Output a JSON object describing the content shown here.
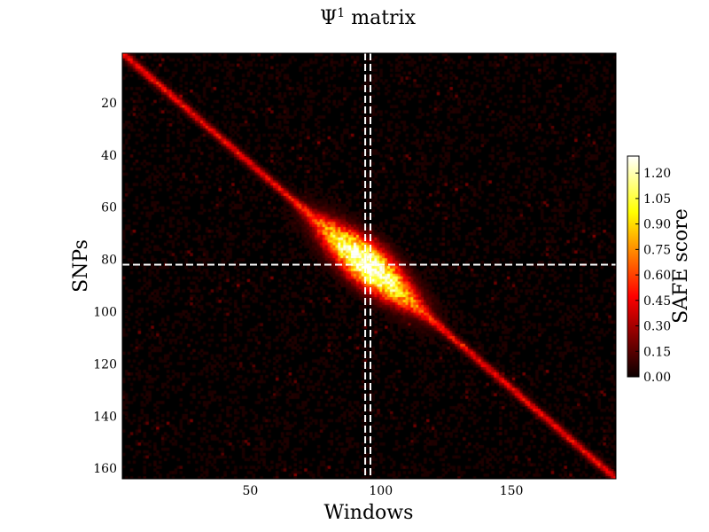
{
  "chart_data": {
    "type": "heatmap",
    "title_base": "Ψ",
    "title_sup": "1",
    "title_rest": " matrix",
    "xlabel": "Windows",
    "ylabel": "SNPs",
    "xlim": [
      1,
      190
    ],
    "ylim": [
      1,
      164
    ],
    "y_inverted": true,
    "x_ticks": [
      50,
      100,
      150
    ],
    "y_ticks": [
      20,
      40,
      60,
      80,
      100,
      120,
      140,
      160
    ],
    "colorbar": {
      "label": "SAFE score",
      "min": 0,
      "max": 1.3,
      "ticks": [
        "0.00",
        "0.15",
        "0.30",
        "0.45",
        "0.60",
        "0.75",
        "0.90",
        "1.05",
        "1.20"
      ],
      "colormap": "hot"
    },
    "matrix_shape": {
      "rows": 164,
      "cols": 190
    },
    "diagonal": {
      "start": [
        1,
        1
      ],
      "end": [
        190,
        164
      ]
    },
    "peak": {
      "window": 95,
      "snp": 82,
      "value": 1.3
    },
    "markers": {
      "vertical_windows": [
        94,
        96
      ],
      "horizontal_snp": 82
    },
    "colors": {
      "marker_line": "#ffffff",
      "background": "#000000"
    }
  }
}
